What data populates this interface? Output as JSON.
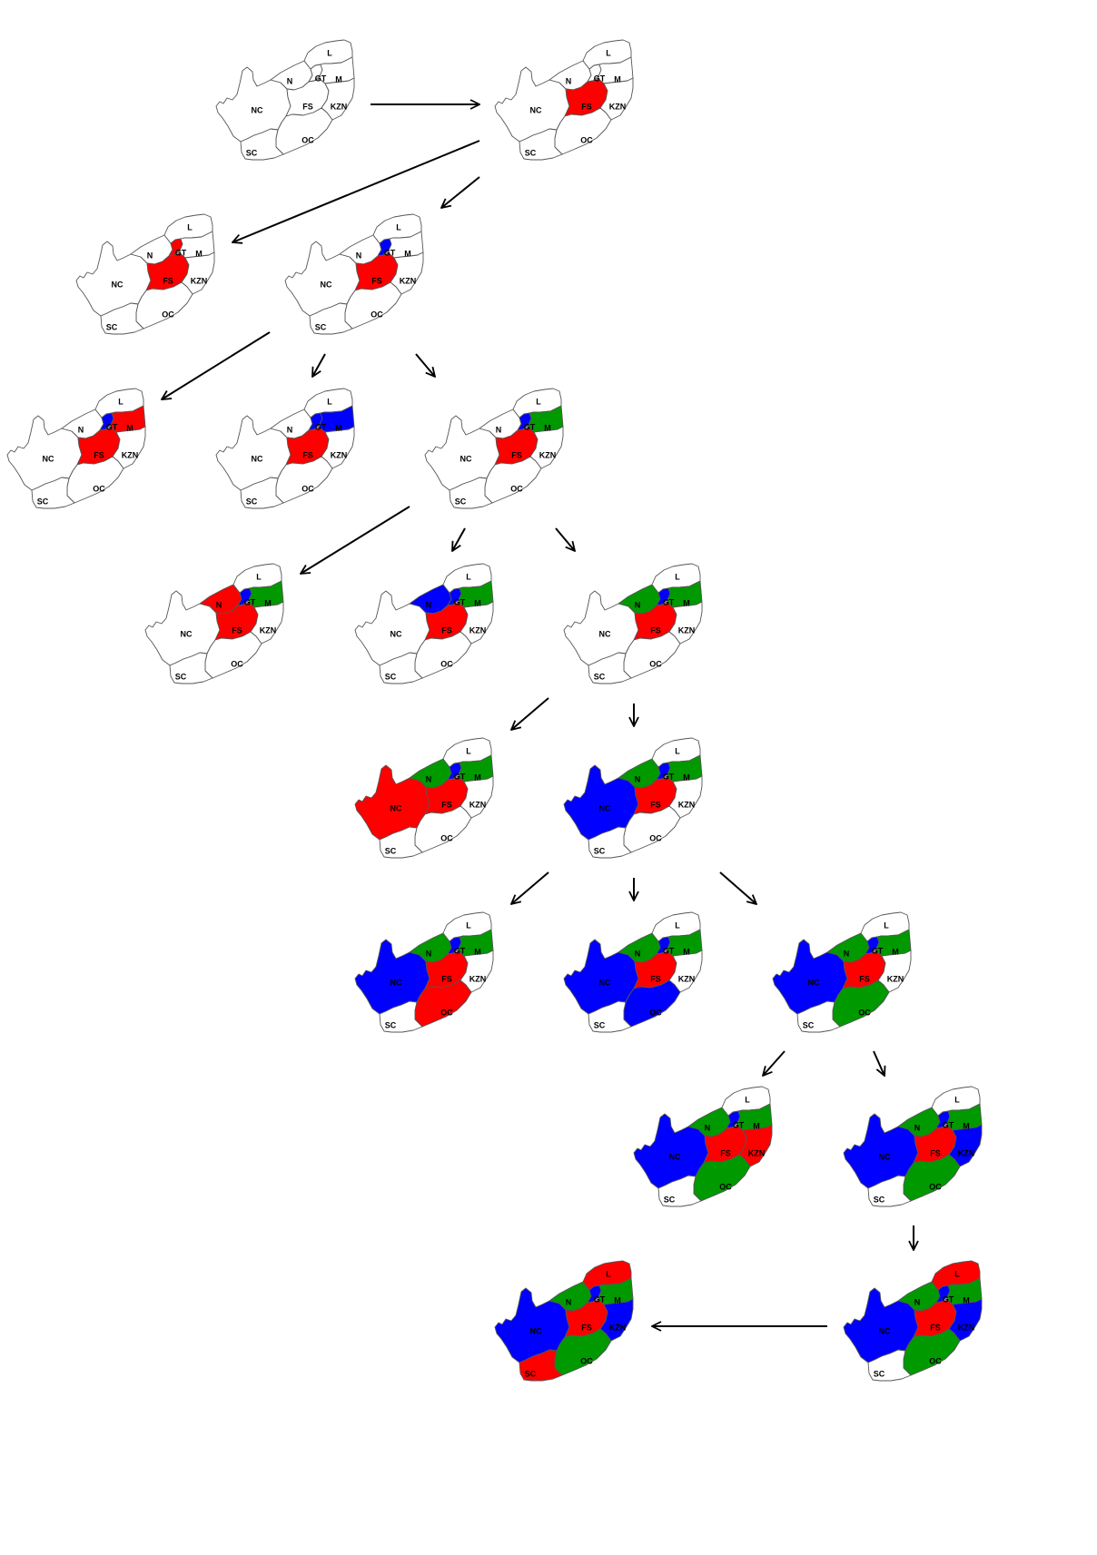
{
  "diagram": {
    "type": "map-coloring-search-tree",
    "colors": {
      "R": "#ff0000",
      "B": "#0000ff",
      "G": "#009900",
      "W": "#ffffff"
    },
    "outline_color": "#555555",
    "regions": [
      {
        "id": "NC",
        "label": "NC"
      },
      {
        "id": "N",
        "label": "N"
      },
      {
        "id": "GT",
        "label": "GT"
      },
      {
        "id": "L",
        "label": "L"
      },
      {
        "id": "M",
        "label": "M"
      },
      {
        "id": "FS",
        "label": "FS"
      },
      {
        "id": "KZN",
        "label": "KZN"
      },
      {
        "id": "OC",
        "label": "OC"
      },
      {
        "id": "SC",
        "label": "SC"
      }
    ],
    "nodes": [
      {
        "id": "s0",
        "assign": {}
      },
      {
        "id": "s1",
        "assign": {
          "FS": "R"
        }
      },
      {
        "id": "s2a",
        "assign": {
          "FS": "R",
          "GT": "R"
        }
      },
      {
        "id": "s2b",
        "assign": {
          "FS": "R",
          "GT": "B"
        }
      },
      {
        "id": "s3a",
        "assign": {
          "FS": "R",
          "GT": "B",
          "M": "R"
        }
      },
      {
        "id": "s3b",
        "assign": {
          "FS": "R",
          "GT": "B",
          "M": "B"
        }
      },
      {
        "id": "s3c",
        "assign": {
          "FS": "R",
          "GT": "B",
          "M": "G"
        }
      },
      {
        "id": "s4a",
        "assign": {
          "FS": "R",
          "GT": "B",
          "M": "G",
          "N": "R"
        }
      },
      {
        "id": "s4b",
        "assign": {
          "FS": "R",
          "GT": "B",
          "M": "G",
          "N": "B"
        }
      },
      {
        "id": "s4c",
        "assign": {
          "FS": "R",
          "GT": "B",
          "M": "G",
          "N": "G"
        }
      },
      {
        "id": "s5a",
        "assign": {
          "FS": "R",
          "GT": "B",
          "M": "G",
          "N": "G",
          "NC": "R"
        }
      },
      {
        "id": "s5b",
        "assign": {
          "FS": "R",
          "GT": "B",
          "M": "G",
          "N": "G",
          "NC": "B"
        }
      },
      {
        "id": "s6a",
        "assign": {
          "FS": "R",
          "GT": "B",
          "M": "G",
          "N": "G",
          "NC": "B",
          "OC": "R"
        }
      },
      {
        "id": "s6b",
        "assign": {
          "FS": "R",
          "GT": "B",
          "M": "G",
          "N": "G",
          "NC": "B",
          "OC": "B"
        }
      },
      {
        "id": "s6c",
        "assign": {
          "FS": "R",
          "GT": "B",
          "M": "G",
          "N": "G",
          "NC": "B",
          "OC": "G"
        }
      },
      {
        "id": "s7a",
        "assign": {
          "FS": "R",
          "GT": "B",
          "M": "G",
          "N": "G",
          "NC": "B",
          "OC": "G",
          "KZN": "R"
        }
      },
      {
        "id": "s7b",
        "assign": {
          "FS": "R",
          "GT": "B",
          "M": "G",
          "N": "G",
          "NC": "B",
          "OC": "G",
          "KZN": "B"
        }
      },
      {
        "id": "s8",
        "assign": {
          "FS": "R",
          "GT": "B",
          "M": "G",
          "N": "G",
          "NC": "B",
          "OC": "G",
          "KZN": "B",
          "L": "R"
        }
      },
      {
        "id": "s9",
        "assign": {
          "FS": "R",
          "GT": "B",
          "M": "G",
          "N": "G",
          "NC": "B",
          "OC": "G",
          "KZN": "B",
          "L": "R",
          "SC": "R"
        }
      }
    ],
    "edges": [
      [
        "s0",
        "s1"
      ],
      [
        "s1",
        "s2a"
      ],
      [
        "s1",
        "s2b"
      ],
      [
        "s2b",
        "s3a"
      ],
      [
        "s2b",
        "s3b"
      ],
      [
        "s2b",
        "s3c"
      ],
      [
        "s3c",
        "s4a"
      ],
      [
        "s3c",
        "s4b"
      ],
      [
        "s3c",
        "s4c"
      ],
      [
        "s4c",
        "s5a"
      ],
      [
        "s4c",
        "s5b"
      ],
      [
        "s5b",
        "s6a"
      ],
      [
        "s5b",
        "s6b"
      ],
      [
        "s5b",
        "s6c"
      ],
      [
        "s6c",
        "s7a"
      ],
      [
        "s6c",
        "s7b"
      ],
      [
        "s7b",
        "s8"
      ],
      [
        "s8",
        "s9"
      ]
    ]
  }
}
